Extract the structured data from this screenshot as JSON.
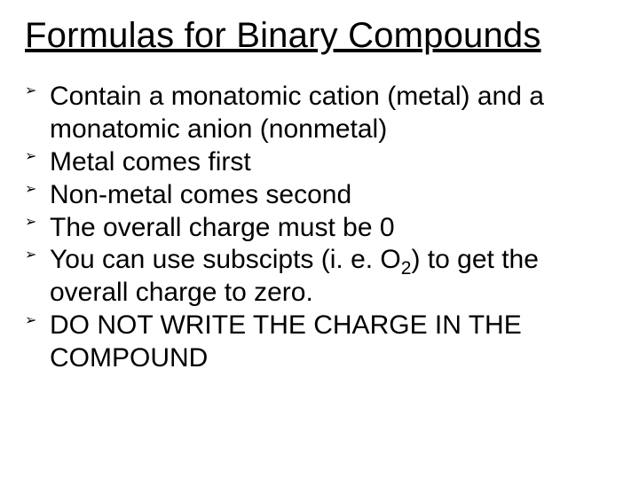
{
  "title": "Formulas for Binary Compounds",
  "bullet_marker": "➢",
  "bullets": {
    "b0": "Contain a monatomic cation (metal) and a monatomic anion (nonmetal)",
    "b1": "Metal comes first",
    "b2": "Non-metal comes second",
    "b3": "The overall charge must be 0",
    "b4_pre": "You can use subscipts (i. e. O",
    "b4_sub": "2",
    "b4_post": ") to get the overall charge to zero.",
    "b5": "DO NOT WRITE THE CHARGE IN THE COMPOUND"
  }
}
